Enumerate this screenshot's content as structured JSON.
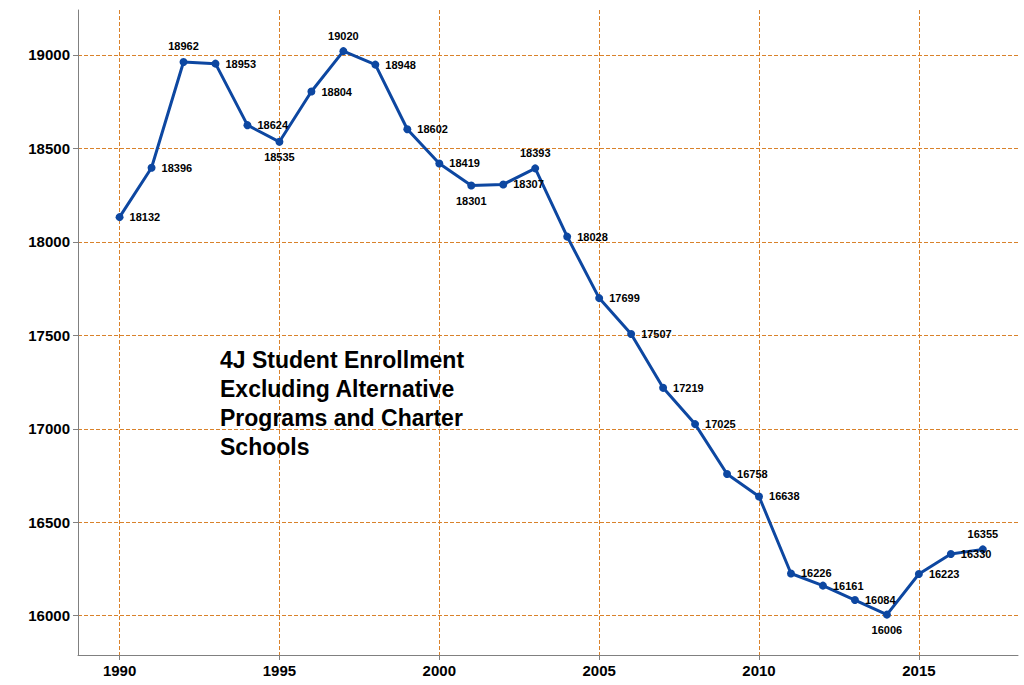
{
  "chart_data": {
    "type": "line",
    "title": "4J Student Enrollment\nExcluding Alternative\nPrograms and Charter\nSchools",
    "x": [
      1990,
      1991,
      1992,
      1993,
      1994,
      1995,
      1996,
      1997,
      1998,
      1999,
      2000,
      2001,
      2002,
      2003,
      2004,
      2005,
      2006,
      2007,
      2008,
      2009,
      2010,
      2011,
      2012,
      2013,
      2014,
      2015,
      2016,
      2017
    ],
    "values": [
      18132,
      18396,
      18962,
      18953,
      18624,
      18535,
      18804,
      19020,
      18948,
      18602,
      18419,
      18301,
      18307,
      18393,
      18028,
      17699,
      17507,
      17219,
      17025,
      16758,
      16638,
      16226,
      16161,
      16084,
      16006,
      16223,
      16330,
      16355
    ],
    "color": "#0d47a1",
    "xlim": [
      1988.7,
      2018.1
    ],
    "xticks": [
      1990,
      1995,
      2000,
      2005,
      2010,
      2015
    ],
    "ylim": [
      15790,
      19240
    ],
    "yticks": [
      16000,
      16500,
      17000,
      17500,
      18000,
      18500,
      19000
    ],
    "grid": true,
    "data_labels": true,
    "marker": "circle"
  }
}
